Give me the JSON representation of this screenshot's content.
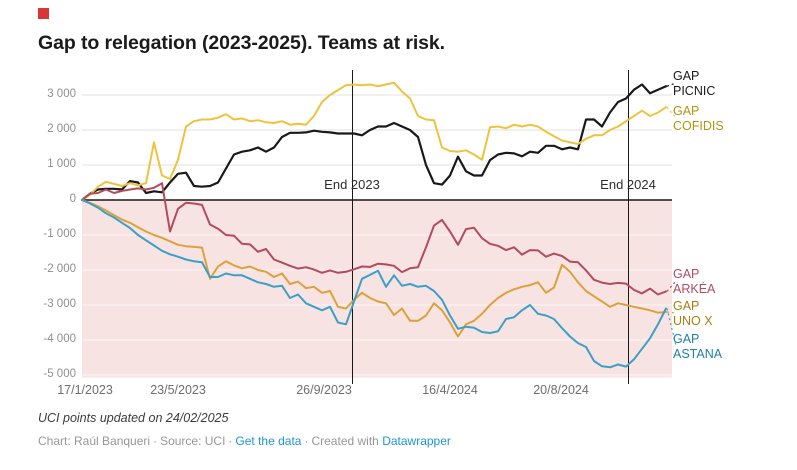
{
  "logo_color": "#d93636",
  "title": "Gap to relegation (2023-2025). Teams at risk.",
  "footer": {
    "note": "UCI points updated on 24/02/2025",
    "byline": "Chart: Raúl Banqueri",
    "source": "Source: UCI",
    "separator": "·",
    "link_get_data": "Get the data",
    "created_with": "Created with",
    "link_datawrapper": "Datawrapper",
    "link_color": "#1f94d2"
  },
  "chart_data": {
    "type": "line",
    "title": "Gap to relegation (2023-2025). Teams at risk.",
    "x_tick_labels": [
      "17/1/2023",
      "23/5/2023",
      "26/9/2023",
      "16/4/2024",
      "20/8/2024"
    ],
    "y_ticks": [
      3000,
      2000,
      1000,
      0,
      -1000,
      -2000,
      -3000,
      -4000,
      -5000
    ],
    "y_tick_labels": [
      "3 000",
      "2 000",
      "1 000",
      "0",
      "-1 000",
      "-2 000",
      "-3 000",
      "-4 000",
      "-5 000"
    ],
    "ylim": [
      -5000,
      3500
    ],
    "grid": true,
    "legend_position": "right-edge-labels",
    "negative_region_color": "#f8e3e3",
    "gridline_color_positive": "#e0e0e0",
    "gridline_color_negative": "rgba(255,255,255,0.65)",
    "zero_line_color": "#191919",
    "vertical_lines": [
      {
        "label": "End 2023"
      },
      {
        "label": "End 2024"
      }
    ],
    "series_note": "values are UCI points gap to relegation, sampled evenly from 17/1/2023 to late Feb 2025",
    "series": [
      {
        "name": "GAP PICNIC",
        "label_lines": [
          "GAP",
          "PICNIC"
        ],
        "color": "#191919",
        "label_color": "#191919",
        "values": [
          0,
          180,
          300,
          320,
          320,
          300,
          540,
          500,
          200,
          250,
          220,
          500,
          750,
          780,
          400,
          380,
          400,
          500,
          900,
          1300,
          1380,
          1420,
          1500,
          1380,
          1500,
          1800,
          1920,
          1920,
          1930,
          1980,
          1950,
          1930,
          1900,
          1900,
          1900,
          1850,
          2000,
          2100,
          2100,
          2200,
          2100,
          2000,
          1800,
          1000,
          480,
          440,
          700,
          1240,
          820,
          700,
          700,
          1140,
          1300,
          1350,
          1330,
          1250,
          1380,
          1350,
          1550,
          1550,
          1450,
          1500,
          1450,
          2300,
          2300,
          2100,
          2500,
          2800,
          2900,
          3150,
          3300,
          3050,
          3150,
          3250
        ]
      },
      {
        "name": "GAP COFIDIS",
        "label_lines": [
          "GAP",
          "COFIDIS"
        ],
        "color": "#eec33c",
        "label_color": "#b2930f",
        "values": [
          0,
          150,
          380,
          520,
          460,
          400,
          480,
          420,
          480,
          1650,
          700,
          600,
          1150,
          2100,
          2250,
          2300,
          2300,
          2350,
          2450,
          2300,
          2330,
          2250,
          2280,
          2220,
          2200,
          2250,
          2150,
          2180,
          2150,
          2400,
          2800,
          3000,
          3140,
          3280,
          3300,
          3280,
          3300,
          3250,
          3300,
          3350,
          3100,
          2900,
          2400,
          2300,
          2280,
          1500,
          1400,
          1380,
          1420,
          1300,
          1150,
          2080,
          2100,
          2050,
          2150,
          2100,
          2150,
          2100,
          1950,
          1820,
          1700,
          1650,
          1600,
          1750,
          1850,
          1850,
          2000,
          2100,
          2250,
          2400,
          2550,
          2400,
          2500,
          2650
        ]
      },
      {
        "name": "GAP ARKÉA",
        "label_lines": [
          "GAP",
          "ARKÉA"
        ],
        "color": "#b34b5e",
        "label_color": "#b34b5e",
        "values": [
          0,
          180,
          200,
          300,
          200,
          260,
          300,
          330,
          300,
          350,
          480,
          -900,
          -250,
          -80,
          -100,
          -140,
          -700,
          -820,
          -1000,
          -1020,
          -1250,
          -1270,
          -1480,
          -1400,
          -1700,
          -1790,
          -1880,
          -1960,
          -1920,
          -1990,
          -2080,
          -2010,
          -2080,
          -2050,
          -1980,
          -1900,
          -1910,
          -1820,
          -1840,
          -1880,
          -2060,
          -1950,
          -1920,
          -1350,
          -730,
          -570,
          -900,
          -1280,
          -830,
          -790,
          -1090,
          -1250,
          -1310,
          -1430,
          -1350,
          -1560,
          -1430,
          -1440,
          -1620,
          -1530,
          -1600,
          -1760,
          -1780,
          -2010,
          -2280,
          -2360,
          -2400,
          -2370,
          -2390,
          -2570,
          -2670,
          -2530,
          -2700,
          -2610
        ]
      },
      {
        "name": "GAP UNO X",
        "label_lines": [
          "GAP",
          "UNO X"
        ],
        "color": "#dba23b",
        "label_color": "#a87e12",
        "values": [
          0,
          -80,
          -180,
          -300,
          -430,
          -560,
          -650,
          -780,
          -900,
          -1000,
          -1080,
          -1180,
          -1280,
          -1320,
          -1340,
          -1360,
          -2250,
          -1900,
          -1750,
          -1870,
          -1950,
          -1900,
          -2000,
          -2050,
          -2200,
          -2100,
          -2400,
          -2330,
          -2520,
          -2480,
          -2650,
          -2600,
          -3050,
          -3100,
          -2850,
          -2650,
          -2800,
          -2900,
          -2950,
          -3290,
          -3100,
          -3450,
          -3450,
          -3300,
          -2950,
          -3150,
          -3500,
          -3900,
          -3550,
          -3450,
          -3250,
          -3000,
          -2800,
          -2650,
          -2550,
          -2480,
          -2430,
          -2350,
          -2650,
          -2500,
          -1850,
          -2050,
          -2350,
          -2600,
          -2750,
          -2900,
          -3050,
          -2950,
          -3000,
          -3050,
          -3100,
          -3150,
          -3220,
          -3200
        ]
      },
      {
        "name": "GAP ASTANA",
        "label_lines": [
          "GAP",
          "ASTANA"
        ],
        "color": "#3b9fc6",
        "label_color": "#2080a5",
        "values": [
          0,
          -100,
          -220,
          -380,
          -500,
          -650,
          -800,
          -1000,
          -1150,
          -1300,
          -1450,
          -1550,
          -1620,
          -1700,
          -1750,
          -1780,
          -2200,
          -2200,
          -2100,
          -2150,
          -2150,
          -2250,
          -2350,
          -2400,
          -2480,
          -2450,
          -2800,
          -2700,
          -2950,
          -3050,
          -3150,
          -3050,
          -3500,
          -3550,
          -2900,
          -2250,
          -2140,
          -2020,
          -2480,
          -2150,
          -2450,
          -2400,
          -2480,
          -2450,
          -2600,
          -2850,
          -3300,
          -3680,
          -3620,
          -3650,
          -3770,
          -3800,
          -3750,
          -3400,
          -3350,
          -3150,
          -3000,
          -3250,
          -3300,
          -3400,
          -3660,
          -3900,
          -4090,
          -4200,
          -4600,
          -4750,
          -4780,
          -4700,
          -4760,
          -4550,
          -4250,
          -3950,
          -3550,
          -3100
        ]
      }
    ]
  }
}
